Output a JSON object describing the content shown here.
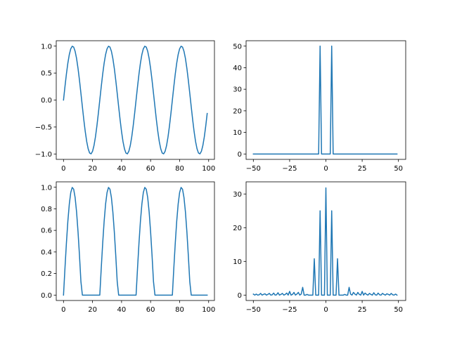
{
  "chart_data": [
    {
      "type": "line",
      "title": "",
      "xlabel": "",
      "ylabel": "",
      "xlim": [
        -5,
        104
      ],
      "ylim": [
        -1.1,
        1.1
      ],
      "grid": false,
      "xticks": [
        0,
        20,
        40,
        60,
        80,
        100
      ],
      "xtick_labels": [
        "0",
        "20",
        "40",
        "60",
        "80",
        "100"
      ],
      "yticks": [
        -1.0,
        -0.5,
        0.0,
        0.5,
        1.0
      ],
      "ytick_labels": [
        "−1.0",
        "−0.5",
        "0.0",
        "0.5",
        "1.0"
      ],
      "x": [
        0,
        1,
        2,
        3,
        4,
        5,
        6,
        7,
        8,
        9,
        10,
        11,
        12,
        13,
        14,
        15,
        16,
        17,
        18,
        19,
        20,
        21,
        22,
        23,
        24,
        25,
        26,
        27,
        28,
        29,
        30,
        31,
        32,
        33,
        34,
        35,
        36,
        37,
        38,
        39,
        40,
        41,
        42,
        43,
        44,
        45,
        46,
        47,
        48,
        49,
        50,
        51,
        52,
        53,
        54,
        55,
        56,
        57,
        58,
        59,
        60,
        61,
        62,
        63,
        64,
        65,
        66,
        67,
        68,
        69,
        70,
        71,
        72,
        73,
        74,
        75,
        76,
        77,
        78,
        79,
        80,
        81,
        82,
        83,
        84,
        85,
        86,
        87,
        88,
        89,
        90,
        91,
        92,
        93,
        94,
        95,
        96,
        97,
        98,
        99
      ],
      "series": [
        {
          "values": [
            0,
            0.249,
            0.482,
            0.685,
            0.844,
            0.951,
            0.998,
            0.982,
            0.905,
            0.771,
            0.588,
            0.368,
            0.125,
            -0.125,
            -0.368,
            -0.588,
            -0.771,
            -0.905,
            -0.982,
            -0.998,
            -0.951,
            -0.844,
            -0.685,
            -0.482,
            -0.249,
            0,
            0.249,
            0.482,
            0.685,
            0.844,
            0.951,
            0.998,
            0.982,
            0.905,
            0.771,
            0.588,
            0.368,
            0.125,
            -0.125,
            -0.368,
            -0.588,
            -0.771,
            -0.905,
            -0.982,
            -0.998,
            -0.951,
            -0.844,
            -0.685,
            -0.482,
            -0.249,
            0,
            0.249,
            0.482,
            0.685,
            0.844,
            0.951,
            0.998,
            0.982,
            0.905,
            0.771,
            0.588,
            0.368,
            0.125,
            -0.125,
            -0.368,
            -0.588,
            -0.771,
            -0.905,
            -0.982,
            -0.998,
            -0.951,
            -0.844,
            -0.685,
            -0.482,
            -0.249,
            0,
            0.249,
            0.482,
            0.685,
            0.844,
            0.951,
            0.998,
            0.982,
            0.905,
            0.771,
            0.588,
            0.368,
            0.125,
            -0.125,
            -0.368,
            -0.588,
            -0.771,
            -0.905,
            -0.982,
            -0.998,
            -0.951,
            -0.844,
            -0.685,
            -0.482,
            -0.249
          ],
          "color": "#1f77b4"
        }
      ]
    },
    {
      "type": "line",
      "title": "",
      "xlabel": "",
      "ylabel": "",
      "xlim": [
        -55,
        55
      ],
      "ylim": [
        -2.5,
        52.5
      ],
      "grid": false,
      "xticks": [
        -50,
        -25,
        0,
        25,
        50
      ],
      "xtick_labels": [
        "−50",
        "−25",
        "0",
        "25",
        "50"
      ],
      "yticks": [
        0,
        10,
        20,
        30,
        40,
        50
      ],
      "ytick_labels": [
        "0",
        "10",
        "20",
        "30",
        "40",
        "50"
      ],
      "x": [
        -50,
        -5,
        -4,
        -3,
        3,
        4,
        5,
        49
      ],
      "series": [
        {
          "values": [
            0,
            0,
            50,
            0,
            0,
            50,
            0,
            0
          ],
          "color": "#1f77b4"
        }
      ]
    },
    {
      "type": "line",
      "title": "",
      "xlabel": "",
      "ylabel": "",
      "xlim": [
        -5,
        104
      ],
      "ylim": [
        -0.05,
        1.05
      ],
      "grid": false,
      "xticks": [
        0,
        20,
        40,
        60,
        80,
        100
      ],
      "xtick_labels": [
        "0",
        "20",
        "40",
        "60",
        "80",
        "100"
      ],
      "yticks": [
        0.0,
        0.2,
        0.4,
        0.6,
        0.8,
        1.0
      ],
      "ytick_labels": [
        "0.0",
        "0.2",
        "0.4",
        "0.6",
        "0.8",
        "1.0"
      ],
      "x": [
        0,
        1,
        2,
        3,
        4,
        5,
        6,
        7,
        8,
        9,
        10,
        11,
        12,
        13,
        14,
        15,
        16,
        17,
        18,
        19,
        20,
        21,
        22,
        23,
        24,
        25,
        26,
        27,
        28,
        29,
        30,
        31,
        32,
        33,
        34,
        35,
        36,
        37,
        38,
        39,
        40,
        41,
        42,
        43,
        44,
        45,
        46,
        47,
        48,
        49,
        50,
        51,
        52,
        53,
        54,
        55,
        56,
        57,
        58,
        59,
        60,
        61,
        62,
        63,
        64,
        65,
        66,
        67,
        68,
        69,
        70,
        71,
        72,
        73,
        74,
        75,
        76,
        77,
        78,
        79,
        80,
        81,
        82,
        83,
        84,
        85,
        86,
        87,
        88,
        89,
        90,
        91,
        92,
        93,
        94,
        95,
        96,
        97,
        98,
        99
      ],
      "series": [
        {
          "values": [
            0,
            0.249,
            0.482,
            0.685,
            0.844,
            0.951,
            0.998,
            0.982,
            0.905,
            0.771,
            0.588,
            0.368,
            0.125,
            0,
            0,
            0,
            0,
            0,
            0,
            0,
            0,
            0,
            0,
            0,
            0,
            0,
            0.249,
            0.482,
            0.685,
            0.844,
            0.951,
            0.998,
            0.982,
            0.905,
            0.771,
            0.588,
            0.368,
            0.125,
            0,
            0,
            0,
            0,
            0,
            0,
            0,
            0,
            0,
            0,
            0,
            0,
            0,
            0.249,
            0.482,
            0.685,
            0.844,
            0.951,
            0.998,
            0.982,
            0.905,
            0.771,
            0.588,
            0.368,
            0.125,
            0,
            0,
            0,
            0,
            0,
            0,
            0,
            0,
            0,
            0,
            0,
            0,
            0,
            0.249,
            0.482,
            0.685,
            0.844,
            0.951,
            0.998,
            0.982,
            0.905,
            0.771,
            0.588,
            0.368,
            0.125,
            0,
            0,
            0,
            0,
            0,
            0,
            0,
            0,
            0,
            0,
            0,
            0
          ],
          "color": "#1f77b4"
        }
      ]
    },
    {
      "type": "line",
      "title": "",
      "xlabel": "",
      "ylabel": "",
      "xlim": [
        -55,
        55
      ],
      "ylim": [
        -1.6,
        33.6
      ],
      "grid": false,
      "xticks": [
        -50,
        -25,
        0,
        25,
        50
      ],
      "xtick_labels": [
        "−50",
        "−25",
        "0",
        "25",
        "50"
      ],
      "yticks": [
        0,
        10,
        20,
        30
      ],
      "ytick_labels": [
        "0",
        "10",
        "20",
        "30"
      ],
      "x": [
        -50,
        -49,
        -48,
        -47,
        -46,
        -45,
        -44,
        -43,
        -42,
        -41,
        -40,
        -39,
        -38,
        -37,
        -36,
        -35,
        -34,
        -33,
        -32,
        -31,
        -30,
        -29,
        -28,
        -27,
        -26,
        -25,
        -24,
        -23,
        -22,
        -21,
        -20,
        -19,
        -18,
        -17,
        -16,
        -15,
        -14,
        -13,
        -12,
        -11,
        -10,
        -9,
        -8,
        -7,
        -6,
        -5,
        -4,
        -3,
        -2,
        -1,
        0,
        1,
        2,
        3,
        4,
        5,
        6,
        7,
        8,
        9,
        10,
        11,
        12,
        13,
        14,
        15,
        16,
        17,
        18,
        19,
        20,
        21,
        22,
        23,
        24,
        25,
        26,
        27,
        28,
        29,
        30,
        31,
        32,
        33,
        34,
        35,
        36,
        37,
        38,
        39,
        40,
        41,
        42,
        43,
        44,
        45,
        46,
        47,
        48,
        49
      ],
      "series": [
        {
          "values": [
            0.3,
            0,
            0.3,
            0,
            0.1,
            0.5,
            0,
            0.2,
            0.4,
            0,
            0.2,
            0.5,
            0,
            0.1,
            0.6,
            0,
            0.1,
            0.7,
            0,
            0.2,
            0.5,
            0,
            0.2,
            0.6,
            0,
            1.1,
            0,
            0.2,
            0.8,
            0,
            0.3,
            0.8,
            0,
            0.3,
            2.3,
            0,
            0,
            0.2,
            0,
            0,
            0,
            0,
            10.8,
            0,
            0,
            0,
            25.0,
            0,
            0,
            0,
            31.8,
            0,
            0,
            0,
            25.0,
            0,
            0,
            0,
            10.8,
            0,
            0,
            0,
            0,
            0.2,
            0,
            0,
            2.3,
            0.3,
            0,
            0.8,
            0.3,
            0,
            0.8,
            0.2,
            0,
            1.1,
            0,
            0.6,
            0.2,
            0,
            0.5,
            0.2,
            0,
            0.7,
            0.1,
            0,
            0.6,
            0.1,
            0,
            0.5,
            0.2,
            0,
            0.4,
            0.2,
            0,
            0.5,
            0.1,
            0,
            0.3,
            0
          ],
          "color": "#1f77b4"
        }
      ]
    }
  ]
}
